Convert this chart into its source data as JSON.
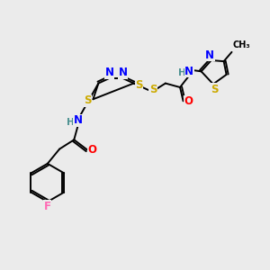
{
  "bg_color": "#ebebeb",
  "atom_colors": {
    "C": "#000000",
    "N": "#0000ff",
    "S": "#ccaa00",
    "O": "#ff0000",
    "F": "#ff69b4",
    "H": "#4a9090"
  },
  "bond_color": "#000000",
  "lw": 1.4,
  "fs": 8.5,
  "fs_small": 7.5
}
